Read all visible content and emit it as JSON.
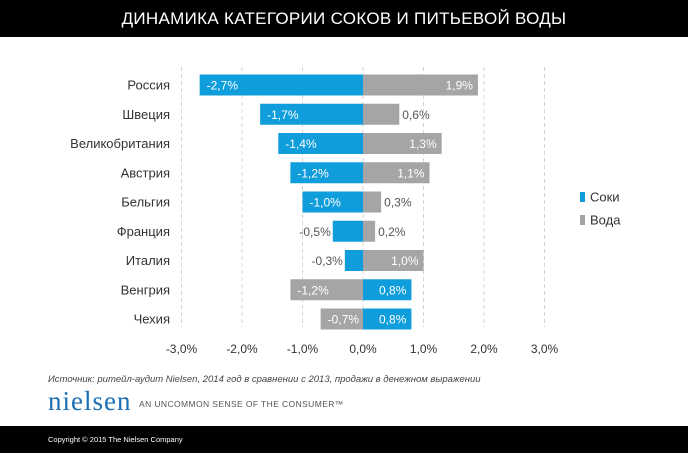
{
  "page": {
    "title": "ДИНАМИКА КАТЕГОРИИ СОКОВ И ПИТЬЕВОЙ ВОДЫ",
    "source": "Источник: ритейл-аудит Nielsen, 2014 год в сравнении с 2013, продажи в денежном выражении",
    "logo": "nielsen",
    "tagline": "AN UNCOMMON SENSE OF THE CONSUMER™",
    "copyright": "Copyright © 2015 The Nielsen Company"
  },
  "chart_data": {
    "type": "bar",
    "orientation": "horizontal",
    "categories": [
      "Россия",
      "Швеция",
      "Великобритания",
      "Австрия",
      "Бельгия",
      "Франция",
      "Италия",
      "Венгрия",
      "Чехия"
    ],
    "series": [
      {
        "name": "Соки",
        "color": "#0f9ddb",
        "values": [
          -2.7,
          -1.7,
          -1.4,
          -1.2,
          -1.0,
          -0.5,
          -0.3,
          0.8,
          0.8
        ],
        "labels": [
          "-2,7%",
          "-1,7%",
          "-1,4%",
          "-1,2%",
          "-1,0%",
          "-0,5%",
          "-0,3%",
          "0,8%",
          "0,8%"
        ]
      },
      {
        "name": "Вода",
        "color": "#a5a5a7",
        "values": [
          1.9,
          0.6,
          1.3,
          1.1,
          0.3,
          0.2,
          1.0,
          -1.2,
          -0.7
        ],
        "labels": [
          "1,9%",
          "0,6%",
          "1,3%",
          "1,1%",
          "0,3%",
          "0,2%",
          "1,0%",
          "-1,2%",
          "-0,7%"
        ]
      }
    ],
    "xlim": [
      -3.0,
      3.0
    ],
    "xticks": [
      -3,
      -2,
      -1,
      0,
      1,
      2,
      3
    ],
    "xtick_labels": [
      "-3,0%",
      "-2,0%",
      "-1,0%",
      "0,0%",
      "1,0%",
      "2,0%",
      "3,0%"
    ],
    "grid": "vertical dashed",
    "legend_position": "right"
  }
}
